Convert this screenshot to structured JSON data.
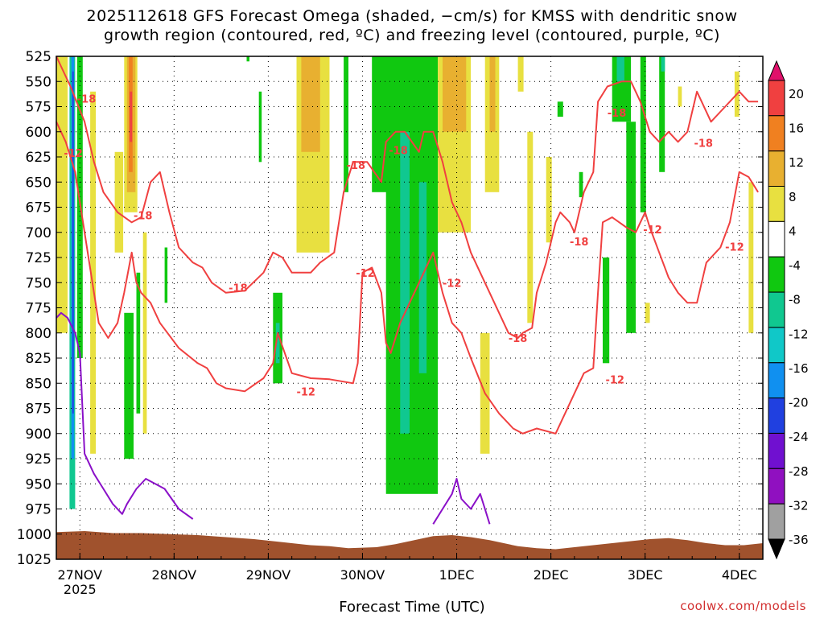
{
  "title_line1": "2025112618 GFS Forecast Omega (shaded, −cm/s) for KMSS with dendritic snow",
  "title_line2": "growth region (contoured, red, ºC) and freezing level (contoured, purple, ºC)",
  "xlabel": "Forecast Time (UTC)",
  "credit": "coolwx.com/models",
  "colors": {
    "dgz": "#f04040",
    "freezing": "#8a10c8",
    "terrain": "#a0522d"
  },
  "chart_data": {
    "type": "heatmap",
    "x_range_days": [
      0,
      7.5
    ],
    "y_range_hpa": [
      525,
      1025
    ],
    "y_scale": "linear, pressure decreasing upward",
    "grid": true,
    "y_ticks": [
      "525",
      "550",
      "575",
      "600",
      "625",
      "650",
      "675",
      "700",
      "725",
      "750",
      "775",
      "800",
      "825",
      "850",
      "875",
      "900",
      "925",
      "950",
      "975",
      "1000",
      "1025"
    ],
    "x_ticks": [
      {
        "day": 0.25,
        "label": "27NOV",
        "sub": "2025"
      },
      {
        "day": 1.25,
        "label": "28NOV"
      },
      {
        "day": 2.25,
        "label": "29NOV"
      },
      {
        "day": 3.25,
        "label": "30NOV"
      },
      {
        "day": 4.25,
        "label": "1DEC"
      },
      {
        "day": 5.25,
        "label": "2DEC"
      },
      {
        "day": 6.25,
        "label": "3DEC"
      },
      {
        "day": 7.25,
        "label": "4DEC"
      }
    ],
    "colorbar": [
      {
        "value": "20",
        "color": "#e0106a"
      },
      {
        "value": "16",
        "color": "#f04040"
      },
      {
        "value": "12",
        "color": "#f08020"
      },
      {
        "value": "8",
        "color": "#e8b030"
      },
      {
        "value": "4",
        "color": "#e8e040"
      },
      {
        "value": "-4",
        "color": "#ffffff"
      },
      {
        "value": "-8",
        "color": "#10c810"
      },
      {
        "value": "-12",
        "color": "#10c890"
      },
      {
        "value": "-16",
        "color": "#10c8c8"
      },
      {
        "value": "-20",
        "color": "#1090f0"
      },
      {
        "value": "-24",
        "color": "#2040e0"
      },
      {
        "value": "-28",
        "color": "#7010d0"
      },
      {
        "value": "-32",
        "color": "#9010c0"
      },
      {
        "value": "-36",
        "color": "#a0a0a0"
      }
    ],
    "contour_labels": [
      {
        "text": "-18",
        "day": 0.32,
        "hpa": 567
      },
      {
        "text": "-12",
        "day": 0.18,
        "hpa": 621
      },
      {
        "text": "-18",
        "day": 0.92,
        "hpa": 683
      },
      {
        "text": "-18",
        "day": 1.93,
        "hpa": 755
      },
      {
        "text": "-12",
        "day": 2.65,
        "hpa": 858
      },
      {
        "text": "-18",
        "day": 3.18,
        "hpa": 633
      },
      {
        "text": "-12",
        "day": 3.28,
        "hpa": 740
      },
      {
        "text": "-18",
        "day": 3.63,
        "hpa": 618
      },
      {
        "text": "-12",
        "day": 4.2,
        "hpa": 750
      },
      {
        "text": "-18",
        "day": 4.9,
        "hpa": 805
      },
      {
        "text": "-18",
        "day": 5.55,
        "hpa": 709
      },
      {
        "text": "-18",
        "day": 5.95,
        "hpa": 581
      },
      {
        "text": "-12",
        "day": 5.93,
        "hpa": 846
      },
      {
        "text": "-12",
        "day": 6.33,
        "hpa": 697
      },
      {
        "text": "-18",
        "day": 6.87,
        "hpa": 611
      },
      {
        "text": "-12",
        "day": 7.2,
        "hpa": 714
      }
    ],
    "dgz_minus12": [
      [
        0,
        590
      ],
      [
        0.1,
        610
      ],
      [
        0.2,
        640
      ],
      [
        0.3,
        700
      ],
      [
        0.4,
        760
      ],
      [
        0.45,
        790
      ],
      [
        0.55,
        805
      ],
      [
        0.65,
        790
      ],
      [
        0.72,
        760
      ],
      [
        0.8,
        720
      ],
      [
        0.85,
        750
      ],
      [
        0.9,
        760
      ],
      [
        1.0,
        770
      ],
      [
        1.1,
        790
      ],
      [
        1.3,
        815
      ],
      [
        1.5,
        830
      ],
      [
        1.6,
        835
      ],
      [
        1.7,
        850
      ],
      [
        1.8,
        855
      ],
      [
        2.0,
        858
      ],
      [
        2.2,
        845
      ],
      [
        2.3,
        830
      ],
      [
        2.35,
        800
      ],
      [
        2.5,
        840
      ],
      [
        2.7,
        845
      ],
      [
        2.9,
        846
      ],
      [
        3.15,
        850
      ],
      [
        3.2,
        830
      ],
      [
        3.25,
        740
      ],
      [
        3.35,
        735
      ],
      [
        3.45,
        760
      ],
      [
        3.5,
        810
      ],
      [
        3.55,
        820
      ],
      [
        3.65,
        790
      ],
      [
        3.8,
        760
      ],
      [
        3.9,
        740
      ],
      [
        4.0,
        720
      ],
      [
        4.1,
        760
      ],
      [
        4.2,
        790
      ],
      [
        4.3,
        800
      ],
      [
        4.4,
        825
      ],
      [
        4.55,
        860
      ],
      [
        4.7,
        880
      ],
      [
        4.85,
        895
      ],
      [
        4.95,
        900
      ],
      [
        5.1,
        895
      ],
      [
        5.3,
        900
      ],
      [
        5.4,
        880
      ],
      [
        5.5,
        860
      ],
      [
        5.6,
        840
      ],
      [
        5.7,
        835
      ],
      [
        5.75,
        760
      ],
      [
        5.8,
        690
      ],
      [
        5.9,
        685
      ],
      [
        6.05,
        695
      ],
      [
        6.15,
        700
      ],
      [
        6.25,
        680
      ],
      [
        6.3,
        695
      ],
      [
        6.4,
        720
      ],
      [
        6.5,
        745
      ],
      [
        6.6,
        760
      ],
      [
        6.7,
        770
      ],
      [
        6.8,
        770
      ],
      [
        6.9,
        730
      ],
      [
        7.05,
        715
      ],
      [
        7.15,
        690
      ],
      [
        7.25,
        640
      ],
      [
        7.35,
        645
      ],
      [
        7.45,
        660
      ]
    ],
    "dgz_minus18": [
      [
        0,
        525
      ],
      [
        0.15,
        555
      ],
      [
        0.3,
        590
      ],
      [
        0.4,
        630
      ],
      [
        0.5,
        660
      ],
      [
        0.65,
        680
      ],
      [
        0.8,
        690
      ],
      [
        0.9,
        685
      ],
      [
        1.0,
        650
      ],
      [
        1.1,
        640
      ],
      [
        1.2,
        680
      ],
      [
        1.3,
        715
      ],
      [
        1.45,
        730
      ],
      [
        1.55,
        735
      ],
      [
        1.65,
        750
      ],
      [
        1.8,
        760
      ],
      [
        2.0,
        758
      ],
      [
        2.2,
        740
      ],
      [
        2.3,
        720
      ],
      [
        2.4,
        725
      ],
      [
        2.5,
        740
      ],
      [
        2.7,
        740
      ],
      [
        2.8,
        730
      ],
      [
        2.95,
        720
      ],
      [
        3.05,
        660
      ],
      [
        3.15,
        630
      ],
      [
        3.3,
        630
      ],
      [
        3.45,
        650
      ],
      [
        3.5,
        610
      ],
      [
        3.6,
        600
      ],
      [
        3.7,
        600
      ],
      [
        3.85,
        620
      ],
      [
        3.9,
        600
      ],
      [
        4.0,
        600
      ],
      [
        4.1,
        630
      ],
      [
        4.2,
        670
      ],
      [
        4.3,
        690
      ],
      [
        4.4,
        720
      ],
      [
        4.5,
        740
      ],
      [
        4.6,
        760
      ],
      [
        4.7,
        780
      ],
      [
        4.8,
        800
      ],
      [
        4.9,
        805
      ],
      [
        4.95,
        800
      ],
      [
        5.05,
        795
      ],
      [
        5.1,
        760
      ],
      [
        5.2,
        730
      ],
      [
        5.3,
        690
      ],
      [
        5.35,
        680
      ],
      [
        5.45,
        690
      ],
      [
        5.5,
        700
      ],
      [
        5.6,
        660
      ],
      [
        5.7,
        640
      ],
      [
        5.75,
        570
      ],
      [
        5.85,
        555
      ],
      [
        6.0,
        550
      ],
      [
        6.1,
        550
      ],
      [
        6.2,
        570
      ],
      [
        6.3,
        600
      ],
      [
        6.4,
        610
      ],
      [
        6.5,
        600
      ],
      [
        6.6,
        610
      ],
      [
        6.7,
        600
      ],
      [
        6.8,
        560
      ],
      [
        6.95,
        590
      ],
      [
        7.1,
        575
      ],
      [
        7.25,
        560
      ],
      [
        7.35,
        570
      ],
      [
        7.45,
        570
      ]
    ],
    "freezing_level": [
      [
        0,
        785
      ],
      [
        0.05,
        780
      ],
      [
        0.12,
        785
      ],
      [
        0.2,
        800
      ],
      [
        0.25,
        820
      ],
      [
        0.3,
        920
      ],
      [
        0.4,
        940
      ],
      [
        0.5,
        955
      ],
      [
        0.6,
        970
      ],
      [
        0.7,
        980
      ],
      [
        0.75,
        970
      ],
      [
        0.85,
        955
      ],
      [
        0.95,
        945
      ],
      [
        1.05,
        950
      ],
      [
        1.15,
        955
      ],
      [
        1.3,
        975
      ],
      [
        1.45,
        985
      ]
    ],
    "freezing_level_2": [
      [
        4.0,
        990
      ],
      [
        4.1,
        975
      ],
      [
        4.2,
        960
      ],
      [
        4.25,
        945
      ],
      [
        4.3,
        965
      ],
      [
        4.4,
        975
      ],
      [
        4.5,
        960
      ],
      [
        4.55,
        975
      ],
      [
        4.6,
        990
      ]
    ],
    "terrain_surface": [
      [
        0,
        998
      ],
      [
        0.3,
        997
      ],
      [
        0.6,
        999
      ],
      [
        0.9,
        999
      ],
      [
        1.2,
        1000
      ],
      [
        1.5,
        1001
      ],
      [
        1.8,
        1003
      ],
      [
        2.1,
        1005
      ],
      [
        2.4,
        1008
      ],
      [
        2.7,
        1011
      ],
      [
        2.9,
        1012
      ],
      [
        3.1,
        1014
      ],
      [
        3.4,
        1013
      ],
      [
        3.6,
        1010
      ],
      [
        3.8,
        1006
      ],
      [
        4.0,
        1002
      ],
      [
        4.2,
        1001
      ],
      [
        4.4,
        1003
      ],
      [
        4.6,
        1006
      ],
      [
        4.9,
        1012
      ],
      [
        5.1,
        1014
      ],
      [
        5.3,
        1015
      ],
      [
        5.5,
        1013
      ],
      [
        5.7,
        1011
      ],
      [
        5.9,
        1009
      ],
      [
        6.1,
        1007
      ],
      [
        6.3,
        1005
      ],
      [
        6.5,
        1004
      ],
      [
        6.7,
        1006
      ],
      [
        6.9,
        1009
      ],
      [
        7.1,
        1011
      ],
      [
        7.3,
        1011
      ],
      [
        7.5,
        1009
      ]
    ],
    "omega_shading": [
      {
        "day": 0.0,
        "width": 0.12,
        "top": 525,
        "bottom": 800,
        "color": "#e8e040"
      },
      {
        "day": 0.14,
        "width": 0.06,
        "top": 525,
        "bottom": 975,
        "color": "#10c890"
      },
      {
        "day": 0.16,
        "width": 0.03,
        "top": 525,
        "bottom": 925,
        "color": "#1090f0"
      },
      {
        "day": 0.17,
        "width": 0.015,
        "top": 540,
        "bottom": 880,
        "color": "#2040e0"
      },
      {
        "day": 0.22,
        "width": 0.06,
        "top": 525,
        "bottom": 825,
        "color": "#10c810"
      },
      {
        "day": 0.36,
        "width": 0.06,
        "top": 560,
        "bottom": 920,
        "color": "#e8e040"
      },
      {
        "day": 0.62,
        "width": 0.09,
        "top": 620,
        "bottom": 720,
        "color": "#e8e040"
      },
      {
        "day": 0.72,
        "width": 0.14,
        "top": 525,
        "bottom": 680,
        "color": "#e8e040"
      },
      {
        "day": 0.75,
        "width": 0.09,
        "top": 525,
        "bottom": 660,
        "color": "#e8b030"
      },
      {
        "day": 0.77,
        "width": 0.04,
        "top": 525,
        "bottom": 640,
        "color": "#f08020"
      },
      {
        "day": 0.78,
        "width": 0.025,
        "top": 560,
        "bottom": 610,
        "color": "#f04040"
      },
      {
        "day": 0.72,
        "width": 0.1,
        "top": 780,
        "bottom": 925,
        "color": "#10c810"
      },
      {
        "day": 0.85,
        "width": 0.04,
        "top": 740,
        "bottom": 880,
        "color": "#10c810"
      },
      {
        "day": 0.92,
        "width": 0.04,
        "top": 700,
        "bottom": 900,
        "color": "#e8e040"
      },
      {
        "day": 1.15,
        "width": 0.03,
        "top": 715,
        "bottom": 770,
        "color": "#10c810"
      },
      {
        "day": 2.02,
        "width": 0.03,
        "top": 525,
        "bottom": 530,
        "color": "#10c810"
      },
      {
        "day": 2.15,
        "width": 0.03,
        "top": 560,
        "bottom": 630,
        "color": "#10c810"
      },
      {
        "day": 2.3,
        "width": 0.1,
        "top": 760,
        "bottom": 850,
        "color": "#10c810"
      },
      {
        "day": 2.33,
        "width": 0.04,
        "top": 790,
        "bottom": 830,
        "color": "#10c890"
      },
      {
        "day": 2.55,
        "width": 0.35,
        "top": 525,
        "bottom": 720,
        "color": "#e8e040"
      },
      {
        "day": 2.6,
        "width": 0.2,
        "top": 525,
        "bottom": 620,
        "color": "#e8b030"
      },
      {
        "day": 3.05,
        "width": 0.05,
        "top": 525,
        "bottom": 660,
        "color": "#10c810"
      },
      {
        "day": 3.35,
        "width": 0.25,
        "top": 525,
        "bottom": 660,
        "color": "#10c810"
      },
      {
        "day": 3.5,
        "width": 0.55,
        "top": 525,
        "bottom": 960,
        "color": "#10c810"
      },
      {
        "day": 3.65,
        "width": 0.1,
        "top": 600,
        "bottom": 900,
        "color": "#10c890"
      },
      {
        "day": 3.85,
        "width": 0.08,
        "top": 650,
        "bottom": 840,
        "color": "#10c890"
      },
      {
        "day": 4.05,
        "width": 0.35,
        "top": 525,
        "bottom": 700,
        "color": "#e8e040"
      },
      {
        "day": 4.1,
        "width": 0.25,
        "top": 525,
        "bottom": 600,
        "color": "#e8b030"
      },
      {
        "day": 4.55,
        "width": 0.15,
        "top": 525,
        "bottom": 660,
        "color": "#e8e040"
      },
      {
        "day": 4.6,
        "width": 0.06,
        "top": 525,
        "bottom": 600,
        "color": "#e8b030"
      },
      {
        "day": 4.5,
        "width": 0.1,
        "top": 800,
        "bottom": 920,
        "color": "#e8e040"
      },
      {
        "day": 4.9,
        "width": 0.06,
        "top": 525,
        "bottom": 560,
        "color": "#e8e040"
      },
      {
        "day": 5.0,
        "width": 0.06,
        "top": 600,
        "bottom": 790,
        "color": "#e8e040"
      },
      {
        "day": 5.2,
        "width": 0.06,
        "top": 625,
        "bottom": 710,
        "color": "#e8e040"
      },
      {
        "day": 5.32,
        "width": 0.06,
        "top": 570,
        "bottom": 585,
        "color": "#10c810"
      },
      {
        "day": 5.55,
        "width": 0.04,
        "top": 640,
        "bottom": 665,
        "color": "#10c810"
      },
      {
        "day": 5.8,
        "width": 0.07,
        "top": 725,
        "bottom": 830,
        "color": "#10c810"
      },
      {
        "day": 5.9,
        "width": 0.2,
        "top": 525,
        "bottom": 590,
        "color": "#10c810"
      },
      {
        "day": 5.95,
        "width": 0.08,
        "top": 525,
        "bottom": 550,
        "color": "#10c890"
      },
      {
        "day": 6.05,
        "width": 0.1,
        "top": 590,
        "bottom": 800,
        "color": "#10c810"
      },
      {
        "day": 6.2,
        "width": 0.06,
        "top": 525,
        "bottom": 680,
        "color": "#10c810"
      },
      {
        "day": 6.4,
        "width": 0.06,
        "top": 525,
        "bottom": 640,
        "color": "#10c810"
      },
      {
        "day": 6.42,
        "width": 0.04,
        "top": 525,
        "bottom": 540,
        "color": "#10c890"
      },
      {
        "day": 6.25,
        "width": 0.05,
        "top": 770,
        "bottom": 790,
        "color": "#e8e040"
      },
      {
        "day": 6.6,
        "width": 0.04,
        "top": 555,
        "bottom": 575,
        "color": "#e8e040"
      },
      {
        "day": 7.2,
        "width": 0.05,
        "top": 540,
        "bottom": 585,
        "color": "#e8e040"
      },
      {
        "day": 7.35,
        "width": 0.05,
        "top": 650,
        "bottom": 800,
        "color": "#e8e040"
      }
    ]
  }
}
